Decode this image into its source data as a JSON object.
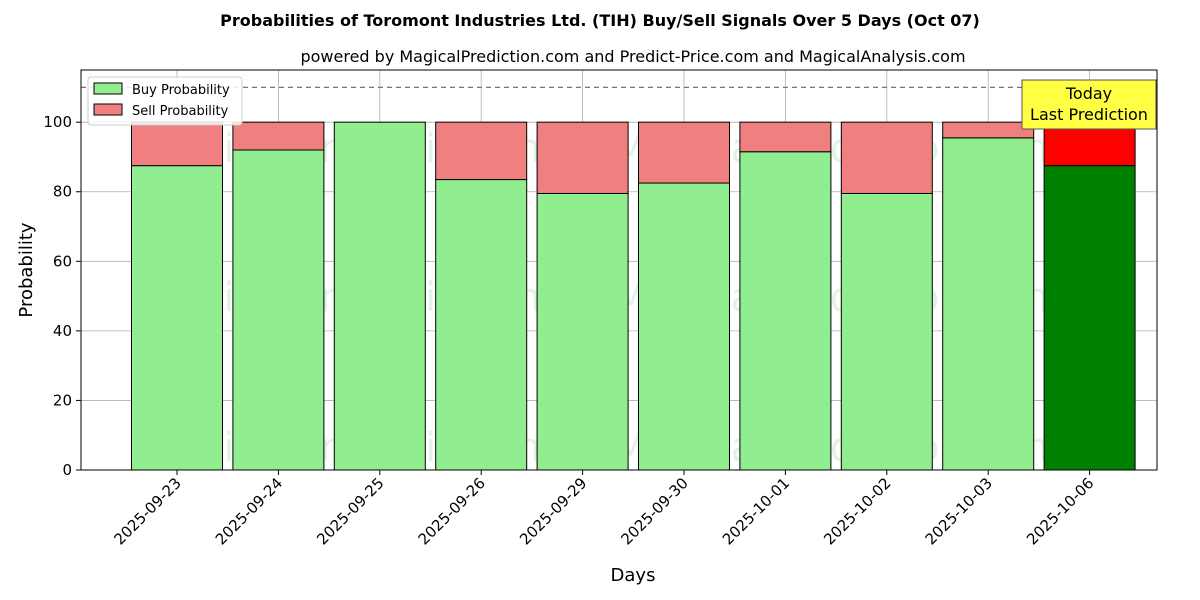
{
  "chart_data": {
    "type": "bar",
    "stacked": true,
    "title": "Probabilities of Toromont Industries Ltd. (TIH) Buy/Sell Signals Over 5 Days (Oct 07)",
    "subtitle": "powered by MagicalPrediction.com and Predict-Price.com and MagicalAnalysis.com",
    "xlabel": "Days",
    "ylabel": "Probability",
    "ylim": [
      0,
      115
    ],
    "yticks": [
      0,
      20,
      40,
      60,
      80,
      100
    ],
    "grid": true,
    "legend_position": "top-left",
    "reference_line": 110,
    "categories": [
      "2025-09-23",
      "2025-09-24",
      "2025-09-25",
      "2025-09-26",
      "2025-09-29",
      "2025-09-30",
      "2025-10-01",
      "2025-10-02",
      "2025-10-03",
      "2025-10-06"
    ],
    "series": [
      {
        "name": "Buy Probability",
        "values": [
          87.5,
          92,
          100,
          83.5,
          79.5,
          82.5,
          91.5,
          79.5,
          95.5,
          87.5
        ],
        "color": "#90ee90",
        "highlight_color": "#008000"
      },
      {
        "name": "Sell Probability",
        "values": [
          12.5,
          8,
          0,
          16.5,
          20.5,
          17.5,
          8.5,
          20.5,
          4.5,
          12.5
        ],
        "color": "#f08080",
        "highlight_color": "#ff0000"
      }
    ],
    "highlight_index": 9,
    "annotation": {
      "line1": "Today",
      "line2": "Last Prediction",
      "color": "#ffff44"
    },
    "watermarks": [
      "MagicalAnalysis.com",
      "MagicalPrediction.com"
    ]
  }
}
